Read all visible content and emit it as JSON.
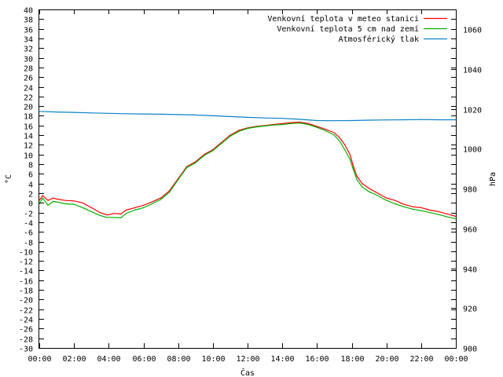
{
  "chart_data": {
    "type": "line",
    "title": "",
    "xlabel": "Čas",
    "ylabel_left": "°C",
    "ylabel_right": "hPa",
    "grid": false,
    "legend_position": "top-right",
    "x_ticks": [
      "00:00",
      "02:00",
      "04:00",
      "06:00",
      "08:00",
      "10:00",
      "12:00",
      "14:00",
      "16:00",
      "18:00",
      "20:00",
      "22:00",
      "00:00"
    ],
    "x_range_hours": [
      0,
      24
    ],
    "ylim_left": [
      -30,
      40
    ],
    "y_ticks_left": [
      40,
      38,
      36,
      34,
      32,
      30,
      28,
      26,
      24,
      22,
      20,
      18,
      16,
      14,
      12,
      10,
      8,
      6,
      4,
      2,
      0,
      -2,
      -4,
      -6,
      -8,
      -10,
      -12,
      -14,
      -16,
      -18,
      -20,
      -22,
      -24,
      -26,
      -28,
      -30
    ],
    "ylim_right": [
      900,
      1070
    ],
    "y_ticks_right": [
      1060,
      1040,
      1020,
      1000,
      980,
      960,
      940,
      920,
      900
    ],
    "series": [
      {
        "name": "Venkovní teplota v meteo stanici",
        "axis": "left",
        "color": "#ff0000",
        "x_hours": [
          0,
          0.2,
          0.5,
          0.8,
          1,
          1.5,
          2,
          2.5,
          3,
          3.5,
          3.9,
          4.3,
          4.7,
          5,
          5.5,
          6,
          6.5,
          7,
          7.5,
          8,
          8.5,
          9,
          9.5,
          10,
          10.5,
          11,
          11.5,
          12,
          12.5,
          13,
          13.5,
          14,
          14.5,
          15,
          15.5,
          16,
          16.5,
          17,
          17.3,
          17.6,
          17.9,
          18.1,
          18.3,
          18.6,
          19,
          19.5,
          20,
          20.5,
          21,
          21.5,
          22,
          22.5,
          23,
          23.5,
          24
        ],
        "values": [
          0.5,
          1.5,
          0.5,
          1.0,
          0.8,
          0.5,
          0.4,
          0.0,
          -1.0,
          -2.0,
          -2.5,
          -2.2,
          -2.3,
          -1.5,
          -1.0,
          -0.5,
          0.2,
          1.0,
          2.5,
          5.0,
          7.5,
          8.5,
          10.0,
          11.0,
          12.5,
          14.0,
          15.0,
          15.5,
          15.8,
          16.0,
          16.2,
          16.4,
          16.6,
          16.7,
          16.4,
          15.8,
          15.2,
          14.5,
          13.5,
          12.0,
          10.0,
          7.5,
          5.5,
          4.0,
          3.0,
          2.0,
          1.0,
          0.5,
          -0.3,
          -0.8,
          -1.0,
          -1.5,
          -1.8,
          -2.3,
          -2.8
        ]
      },
      {
        "name": "Venkovní teplota 5 cm nad zemí",
        "axis": "left",
        "color": "#00b000",
        "x_hours": [
          0,
          0.2,
          0.5,
          0.8,
          1,
          1.5,
          2,
          2.5,
          3,
          3.5,
          3.9,
          4.3,
          4.7,
          5,
          5.5,
          6,
          6.5,
          7,
          7.5,
          8,
          8.5,
          9,
          9.5,
          10,
          10.5,
          11,
          11.5,
          12,
          12.5,
          13,
          13.5,
          14,
          14.5,
          15,
          15.5,
          16,
          16.5,
          17,
          17.3,
          17.6,
          17.9,
          18.1,
          18.3,
          18.6,
          19,
          19.5,
          20,
          20.5,
          21,
          21.5,
          22,
          22.5,
          23,
          23.5,
          24
        ],
        "values": [
          -0.2,
          1.0,
          -0.5,
          0.3,
          0.2,
          -0.2,
          -0.3,
          -1.0,
          -1.8,
          -2.6,
          -3.0,
          -3.0,
          -3.1,
          -2.2,
          -1.5,
          -1.0,
          -0.2,
          0.7,
          2.2,
          4.8,
          7.3,
          8.3,
          9.8,
          10.8,
          12.3,
          13.8,
          14.8,
          15.4,
          15.7,
          15.9,
          16.1,
          16.2,
          16.4,
          16.5,
          16.2,
          15.6,
          14.9,
          14.0,
          12.8,
          11.0,
          9.0,
          6.8,
          4.8,
          3.3,
          2.3,
          1.5,
          0.5,
          -0.2,
          -0.8,
          -1.3,
          -1.6,
          -2.0,
          -2.4,
          -2.9,
          -3.3
        ]
      },
      {
        "name": "Atmosférický tlak",
        "axis": "right",
        "color": "#0a82c8",
        "x_hours": [
          0,
          1,
          2,
          3,
          4,
          5,
          6,
          7,
          8,
          9,
          10,
          11,
          12,
          13,
          14,
          15,
          16,
          17,
          18,
          19,
          20,
          21,
          22,
          23,
          24
        ],
        "values": [
          1018.8,
          1018.5,
          1018.3,
          1018.0,
          1017.8,
          1017.6,
          1017.5,
          1017.4,
          1017.2,
          1017.0,
          1016.6,
          1016.2,
          1015.8,
          1015.5,
          1015.3,
          1014.8,
          1014.2,
          1014.1,
          1014.2,
          1014.4,
          1014.5,
          1014.6,
          1014.7,
          1014.6,
          1014.6
        ]
      }
    ]
  }
}
